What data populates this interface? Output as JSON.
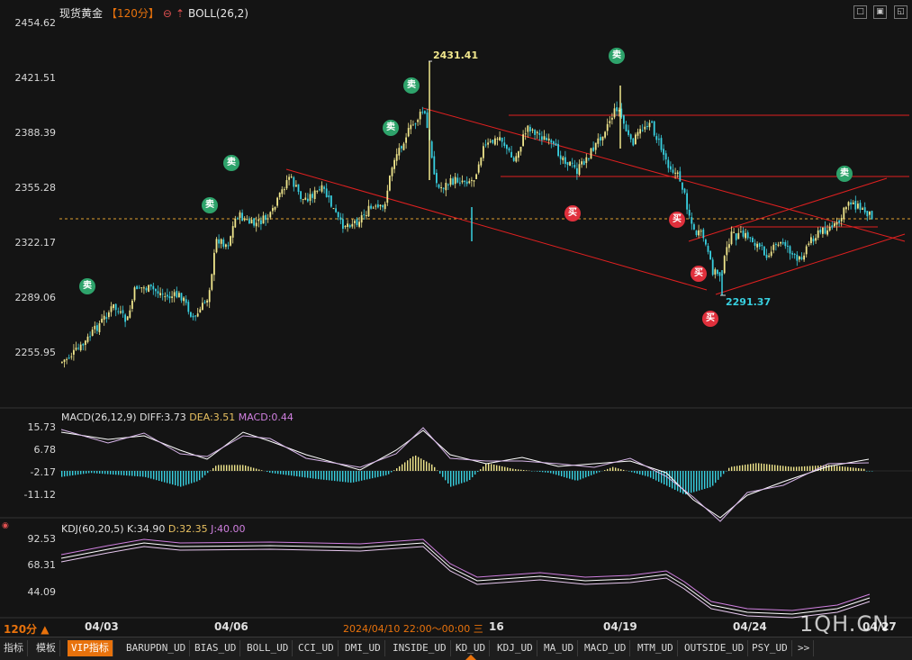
{
  "header": {
    "symbol": "现货黄金",
    "period": "【120分】",
    "indicator": "BOLL(26,2)"
  },
  "window_buttons": [
    "□",
    "▣",
    "◱"
  ],
  "price_axis": [
    "2454.62",
    "2421.51",
    "2388.39",
    "2355.28",
    "2322.17",
    "2289.06",
    "2255.95"
  ],
  "price_range": [
    2240,
    2460
  ],
  "current_price": 2340.5,
  "annotations": {
    "high": "2431.41",
    "low": "2291.37"
  },
  "signals": {
    "sell_label": "卖",
    "buy_label": "买"
  },
  "macd": {
    "title": "MACD(26,12,9)",
    "diff": "DIFF:3.73",
    "dea": "DEA:3.51",
    "macd": "MACD:0.44",
    "axis": [
      "15.73",
      "6.78",
      "-2.17",
      "-11.12"
    ]
  },
  "kdj": {
    "title": "KDJ(60,20,5)",
    "k": "K:34.90",
    "d": "D:32.35",
    "j": "J:40.00",
    "axis": [
      "92.53",
      "68.31",
      "44.09"
    ]
  },
  "bottom_bar": {
    "period": "120分",
    "period_arrow": "▲",
    "cursor_time": "2024/04/10 22:00～00:00 三",
    "dates": [
      "04/03",
      "04/06",
      "16",
      "04/19",
      "04/24",
      "04/27"
    ]
  },
  "watermark": "1QH.CN",
  "tabs": [
    "指标",
    "模板",
    "VIP指标",
    "BARUPDN_UD",
    "BIAS_UD",
    "BOLL_UD",
    "CCI_UD",
    "DMI_UD",
    "INSIDE_UD",
    "KD_UD",
    "KDJ_UD",
    "MA_UD",
    "MACD_UD",
    "MTM_UD",
    "OUTSIDE_UD",
    "PSY_UD",
    ">>"
  ],
  "colors": {
    "up": "#f0e68c",
    "down": "#38d0e0",
    "trendline": "#e02020",
    "sell_signal": "#2ea36b",
    "buy_signal": "#e0303c",
    "active_tab": "#e8720c"
  }
}
